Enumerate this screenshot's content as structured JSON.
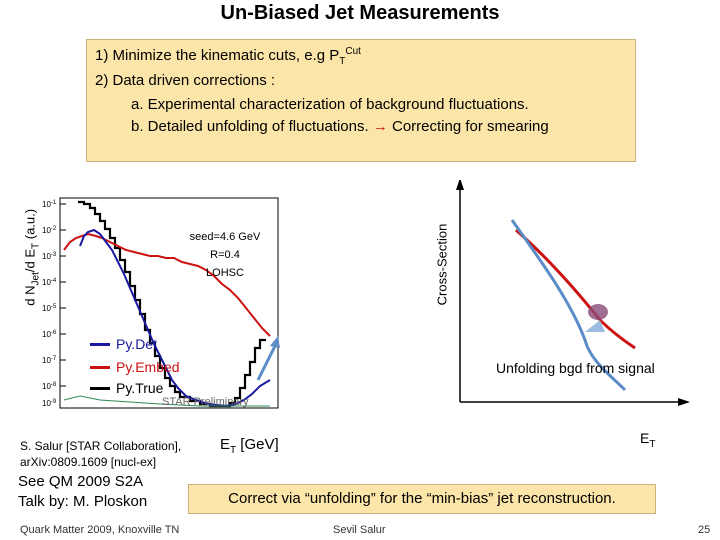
{
  "slide": {
    "title": "Un-Biased Jet Measurements",
    "page_number": "25"
  },
  "bullets": {
    "b1_text": "1) Minimize the kinematic cuts, e.g P",
    "b1_sub": "T",
    "b1_sup": "Cut",
    "b2": "2) Data driven corrections :",
    "b3": "a. Experimental characterization of background fluctuations.",
    "b4_text": "b. Detailed unfolding of fluctuations.",
    "b4_arrow": "→",
    "b4_tail": "Correcting for smearing"
  },
  "left_plot": {
    "ylabel_1": "d N",
    "ylabel_sub_1": "Jet",
    "ylabel_2": "/d E",
    "ylabel_sub_2": "T",
    "ylabel_3": " (a.u.)",
    "xlabel_1": "E",
    "xlabel_sub": "T",
    "xlabel_2": " [GeV]",
    "annotation": [
      "seed=4.6 GeV",
      "R=0.4",
      "LOHSC"
    ],
    "yticks": [
      "10",
      "10",
      "10",
      "10",
      "10",
      "10",
      "10",
      "10"
    ],
    "ytick_exps": [
      "-1",
      "-2",
      "-3",
      "-4",
      "-5",
      "-6",
      "-7",
      "-8"
    ],
    "bottom_tick": "10",
    "bottom_tick_exp": "-9",
    "legend": [
      {
        "label": "Py.Det",
        "color": "#1a1aa0"
      },
      {
        "label": "Py.Embed",
        "color": "#cc1111"
      },
      {
        "label": "Py.True",
        "color": "#000000"
      }
    ],
    "watermark": "STAR Preliminary"
  },
  "right_plot": {
    "ylabel": "Cross-Section",
    "xlabel_1": "E",
    "xlabel_sub": "T",
    "caption": "Unfolding bgd from signal"
  },
  "citation": {
    "line1": "S. Salur [STAR Collaboration],",
    "line2": "arXiv:0809.1609 [nucl-ex]"
  },
  "talk": {
    "line1": "See QM 2009 S2A",
    "line2": "Talk by: M. Ploskon"
  },
  "conclusion": "Correct via “unfolding” for the “min-bias” jet reconstruction.",
  "footer": {
    "left": "Quark Matter 2009, Knoxville TN",
    "center": "Sevil Salur"
  },
  "colors": {
    "box_bg": "#fbe5a8",
    "accent_red": "#cc1111",
    "accent_blue": "#1a1aa0",
    "steel_blue": "#5b8cc7"
  }
}
